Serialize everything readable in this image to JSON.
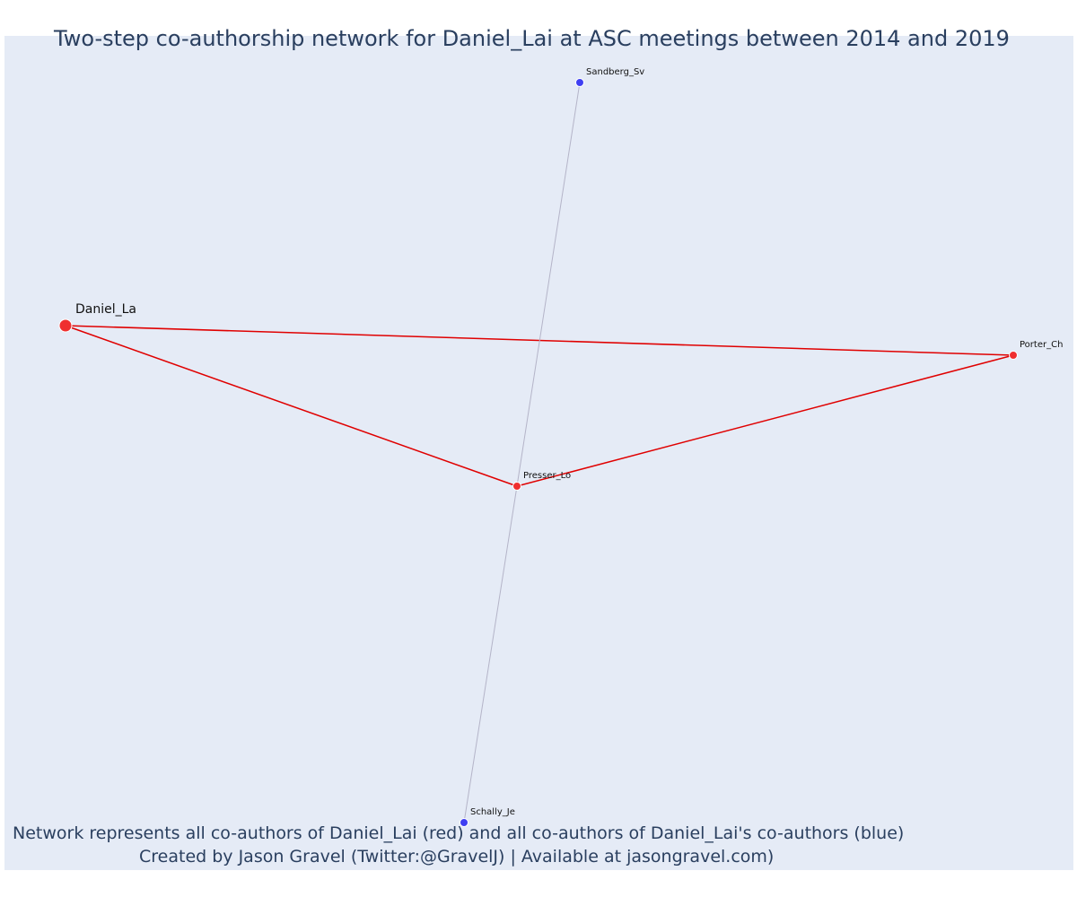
{
  "title": "Two-step co-authorship network for Daniel_Lai at ASC meetings between 2014 and 2019",
  "caption": {
    "line1": "Network represents all co-authors of Daniel_Lai (red) and all co-authors of Daniel_Lai's co-authors (blue)",
    "line2": "Created by Jason Gravel (Twitter:@GravelJ) | Available at jasongravel.com)"
  },
  "colors": {
    "background": "#e5ebf6",
    "coauthor_node": "#ef2f2f",
    "second_step_node": "#3f3ff2",
    "coauthor_edge": "#e00000",
    "second_step_edge": "#b4b4c8"
  },
  "network": {
    "nodes": [
      {
        "id": "Daniel_La",
        "label": "Daniel_La",
        "group": "focal"
      },
      {
        "id": "Porter_Ch",
        "label": "Porter_Ch",
        "group": "coauthor"
      },
      {
        "id": "Presser_Lo",
        "label": "Presser_Lo",
        "group": "coauthor"
      },
      {
        "id": "Sandberg_Sv",
        "label": "Sandberg_Sv",
        "group": "second_step"
      },
      {
        "id": "Schally_Je",
        "label": "Schally_Je",
        "group": "second_step"
      }
    ],
    "edges": [
      {
        "source": "Daniel_La",
        "target": "Porter_Ch",
        "type": "coauthor"
      },
      {
        "source": "Daniel_La",
        "target": "Presser_Lo",
        "type": "coauthor"
      },
      {
        "source": "Presser_Lo",
        "target": "Porter_Ch",
        "type": "coauthor"
      },
      {
        "source": "Sandberg_Sv",
        "target": "Presser_Lo",
        "type": "second_step"
      },
      {
        "source": "Presser_Lo",
        "target": "Schally_Je",
        "type": "second_step"
      }
    ]
  }
}
